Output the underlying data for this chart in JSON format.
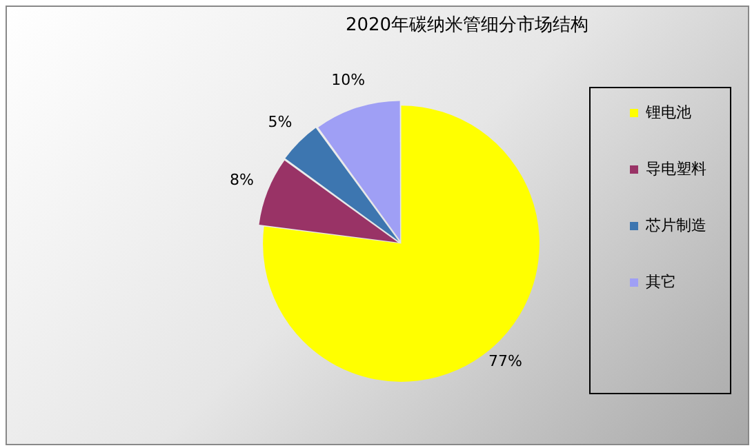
{
  "chart_data": {
    "type": "pie",
    "title": "2020年碳纳米管细分市场结构",
    "categories": [
      "锂电池",
      "导电塑料",
      "芯片制造",
      "其它"
    ],
    "values": [
      77,
      8,
      5,
      10
    ],
    "colors": [
      "#ffff00",
      "#993366",
      "#3d76b0",
      "#9f9ff5"
    ],
    "value_labels": [
      "77%",
      "8%",
      "5%",
      "10%"
    ],
    "legend": "right"
  }
}
